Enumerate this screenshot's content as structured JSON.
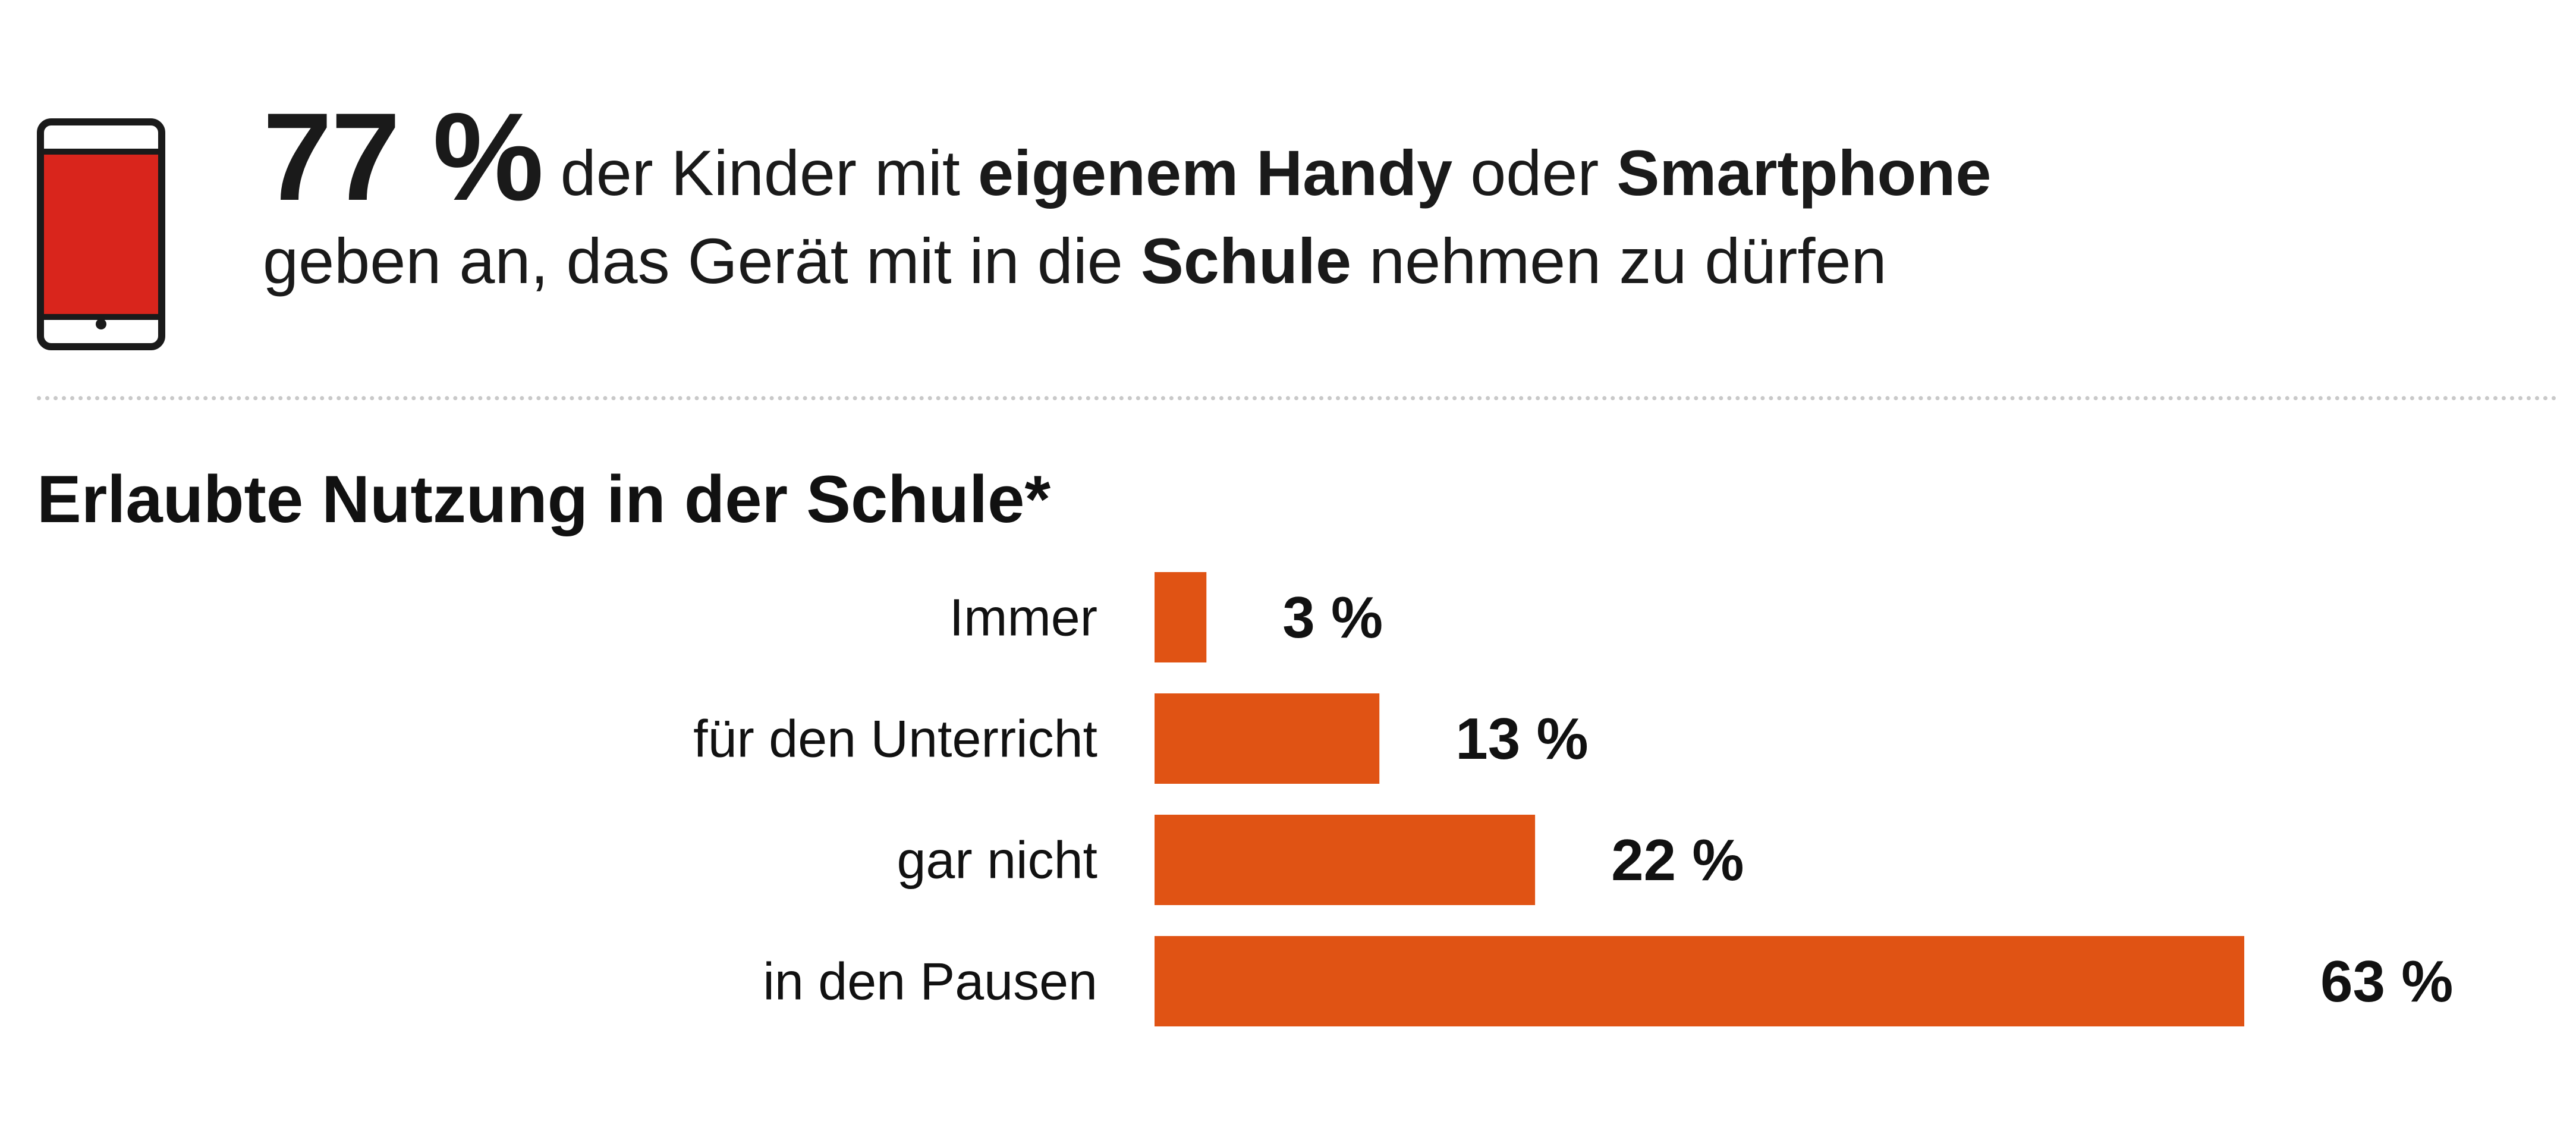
{
  "header": {
    "percent": "77 %",
    "text_1": " der Kinder mit ",
    "bold_1": "eigenem Handy",
    "text_2": " oder ",
    "bold_2": "Smartphone",
    "text_3": "geben an, das Gerät mit in die ",
    "bold_3": "Schule",
    "text_4": " nehmen zu dürfen"
  },
  "icons": {
    "phone": "smartphone-icon"
  },
  "colors": {
    "bar": "#e05314",
    "phone_screen": "#d9251c",
    "text": "#111111",
    "divider": "#c9c9c9"
  },
  "chart_data": {
    "type": "bar",
    "orientation": "horizontal",
    "title": "Erlaubte Nutzung in der Schule*",
    "categories": [
      "Immer",
      "für den Unterricht",
      "gar nicht",
      "in den Pausen"
    ],
    "values": [
      3,
      13,
      22,
      63
    ],
    "labels": [
      "3 %",
      "13 %",
      "22 %",
      "63 %"
    ],
    "unit": "%",
    "xlim": [
      0,
      63
    ]
  }
}
